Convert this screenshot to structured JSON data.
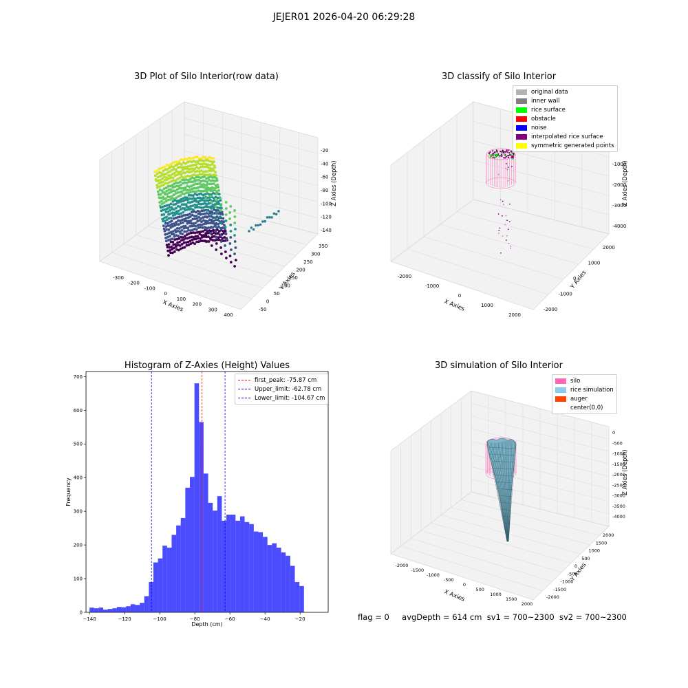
{
  "figure_title": "JEJER01 2026-04-20 06:29:28",
  "panels": {
    "raw": {
      "title": "3D Plot of Silo Interior(row data)",
      "xlabel": "X Axies",
      "ylabel": "Y Axies",
      "zlabel": "Z Axies (Depth)",
      "xticks": [
        "-300",
        "-200",
        "-100",
        "0",
        "100",
        "200",
        "300",
        "400"
      ],
      "yticks": [
        "-50",
        "0",
        "50",
        "100",
        "150",
        "200",
        "250",
        "300",
        "350"
      ],
      "zticks": [
        "-20",
        "-40",
        "-60",
        "-80",
        "-100",
        "-120",
        "-140"
      ]
    },
    "classify": {
      "title": "3D classify of Silo Interior",
      "xlabel": "X Axies",
      "ylabel": "Y Axies",
      "zlabel": "Z Axies (Depth)",
      "xticks": [
        "-2000",
        "-1000",
        "0",
        "1000",
        "2000"
      ],
      "yticks": [
        "-2000",
        "-1000",
        "0",
        "1000",
        "2000"
      ],
      "zticks": [
        "0",
        "-1000",
        "-2000",
        "-3000",
        "-4000"
      ],
      "legend": [
        {
          "label": "original data",
          "color": "#b3b3b3"
        },
        {
          "label": "inner wall",
          "color": "#808080"
        },
        {
          "label": "rice surface",
          "color": "#00ff00"
        },
        {
          "label": "obstacle",
          "color": "#ff0000"
        },
        {
          "label": "noise",
          "color": "#0000ff"
        },
        {
          "label": "interpolated rice surface",
          "color": "#800080"
        },
        {
          "label": "symmetric generated points",
          "color": "#ffff00"
        }
      ]
    },
    "simulation": {
      "title": "3D simulation of Silo Interior",
      "xlabel": "X Axies",
      "ylabel": "Y Axies",
      "zlabel": "Z Axies (Depth)",
      "xticks": [
        "-2000",
        "-1500",
        "-1000",
        "-500",
        "0",
        "500",
        "1000",
        "1500",
        "2000"
      ],
      "yticks": [
        "-2000",
        "-1500",
        "-1000",
        "-500",
        "0",
        "500",
        "1000",
        "1500",
        "2000"
      ],
      "zticks": [
        "0",
        "-500",
        "-1000",
        "-1500",
        "-2000",
        "-2500",
        "-3000",
        "-3500",
        "-4000"
      ],
      "legend": [
        {
          "label": "silo",
          "color": "#ff69b4"
        },
        {
          "label": "rice simulation",
          "color": "#87ceeb"
        },
        {
          "label": "auger",
          "color": "#ff4500"
        },
        {
          "label": "center(0,0)",
          "color": "#ffffff"
        }
      ]
    }
  },
  "chart_data": {
    "type": "bar",
    "title": "Histogram of Z-Axies (Height) Values",
    "xlabel": "Depth (cm)",
    "ylabel": "Frequency",
    "xlim": [
      -142,
      -4
    ],
    "ylim": [
      0,
      715
    ],
    "xticks": [
      -140,
      -120,
      -100,
      -80,
      -60,
      -40,
      -20
    ],
    "yticks": [
      0,
      100,
      200,
      300,
      400,
      500,
      600,
      700
    ],
    "bar_color": "#0000ff",
    "bin_start": -140,
    "bin_width": 2.6,
    "values": [
      14,
      12,
      14,
      8,
      10,
      12,
      16,
      15,
      18,
      24,
      22,
      28,
      48,
      90,
      148,
      160,
      198,
      192,
      230,
      258,
      280,
      370,
      402,
      680,
      565,
      412,
      325,
      302,
      345,
      272,
      290,
      290,
      272,
      285,
      268,
      262,
      240,
      238,
      224,
      200,
      205,
      192,
      178,
      168,
      138,
      90,
      78
    ],
    "vlines": [
      {
        "label": "first_peak: -75.87 cm",
        "x": -75.87,
        "color": "#ff0000"
      },
      {
        "label": "Upper_limit: -62.78 cm",
        "x": -62.78,
        "color": "#0000ff"
      },
      {
        "label": "Lower_limit: -104.67 cm",
        "x": -104.67,
        "color": "#0000ff"
      }
    ]
  },
  "footer": {
    "flag": "flag = 0",
    "avg_depth": "avgDepth = 614 cm",
    "sv1": "sv1 = 700~2300",
    "sv2": "sv2 = 700~2300"
  }
}
